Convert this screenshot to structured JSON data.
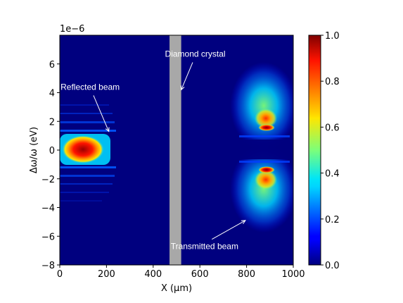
{
  "chart_data": {
    "type": "heatmap",
    "title": "",
    "xlabel": "X (μm)",
    "ylabel": "Δω/ω (eV)",
    "y_offset_label": "1e−6",
    "xlim": [
      0,
      1000
    ],
    "ylim": [
      -8,
      8
    ],
    "x_ticks": [
      0,
      200,
      400,
      600,
      800,
      1000
    ],
    "x_tick_labels": [
      "0",
      "200",
      "400",
      "600",
      "800",
      "1000"
    ],
    "y_ticks": [
      6,
      4,
      2,
      0,
      -2,
      -4,
      -6,
      -8
    ],
    "y_tick_labels": [
      "6",
      "4",
      "2",
      "0",
      "−2",
      "−4",
      "−6",
      "−8"
    ],
    "colormap": "jet",
    "colorbar": {
      "range": [
        0.0,
        1.0
      ],
      "ticks": [
        1.0,
        0.8,
        0.6,
        0.4,
        0.2,
        0.0
      ],
      "tick_labels": [
        "1.0",
        "0.8",
        "0.6",
        "0.4",
        "0.2",
        "0.0"
      ]
    },
    "crystal": {
      "x_range": [
        470,
        520
      ],
      "color": "#a8a8a8"
    },
    "annotations": [
      {
        "text": "Diamond crystal",
        "xy": [
          520,
          4.2
        ],
        "xytext": [
          580,
          6.5
        ]
      },
      {
        "text": "Reflected beam",
        "xy": [
          210,
          1.3
        ],
        "xytext": [
          130,
          4.2
        ]
      },
      {
        "text": "Transmitted beam",
        "xy": [
          795,
          -4.9
        ],
        "xytext": [
          620,
          -6.9
        ]
      }
    ]
  }
}
